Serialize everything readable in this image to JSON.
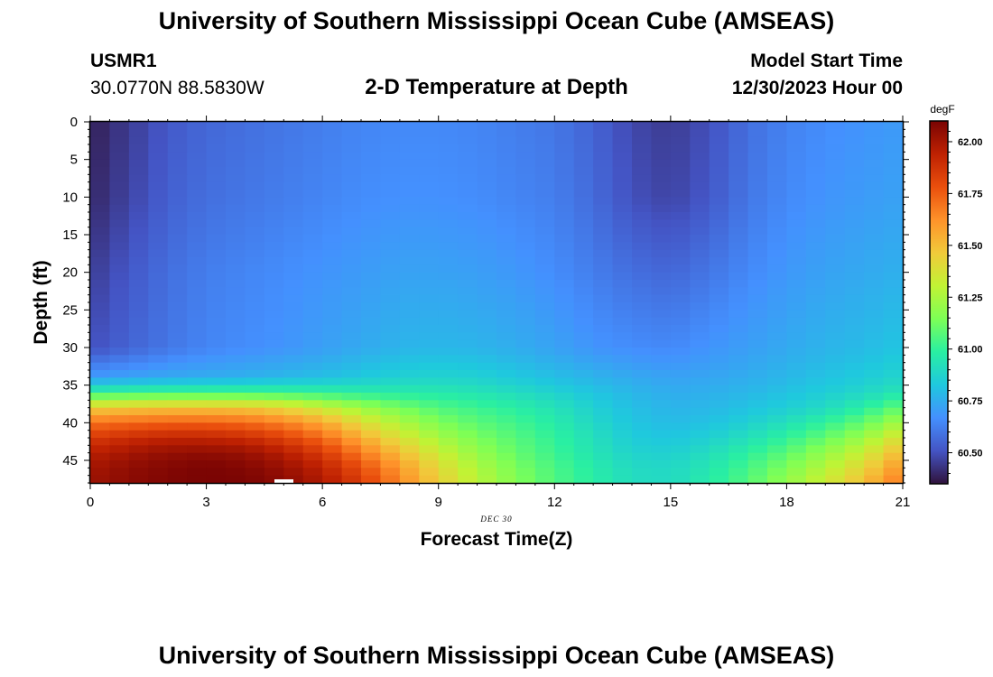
{
  "header": {
    "title": "University of Southern Mississippi Ocean Cube (AMSEAS)",
    "station_id": "USMR1",
    "station_coords": "30.0770N  88.5830W",
    "plot_title": "2-D Temperature at Depth",
    "model_start_label": "Model Start Time",
    "model_start_value": "12/30/2023 Hour 00"
  },
  "footer": {
    "title": "University of Southern Mississippi Ocean Cube (AMSEAS)"
  },
  "chart_data": {
    "type": "heatmap",
    "title": "2-D Temperature at Depth",
    "xlabel": "Forecast Time(Z)",
    "ylabel": "Depth (ft)",
    "date_label": "DEC 30",
    "x_ticks": [
      0,
      3,
      6,
      9,
      12,
      15,
      18,
      21
    ],
    "y_ticks": [
      0,
      5,
      10,
      15,
      20,
      25,
      30,
      35,
      40,
      45
    ],
    "xlim": [
      0,
      21
    ],
    "ylim": [
      0,
      48
    ],
    "colorbar": {
      "unit": "degF",
      "ticks": [
        "62.00",
        "61.75",
        "61.50",
        "61.25",
        "61.00",
        "60.75",
        "60.50"
      ],
      "range": [
        60.35,
        62.1
      ],
      "colors": [
        "#30123b",
        "#4454c4",
        "#4490fe",
        "#1fc8de",
        "#29efa2",
        "#7dff56",
        "#c1f334",
        "#f1ca3a",
        "#fe922a",
        "#ea4f0d",
        "#be2102",
        "#7a0403"
      ]
    },
    "time_hours": [
      0,
      1,
      2,
      3,
      4,
      5,
      6,
      7,
      8,
      9,
      10,
      11,
      12,
      13,
      14,
      15,
      16,
      17,
      18,
      19,
      20,
      21
    ],
    "depth_ft": [
      0,
      10,
      20,
      30,
      34,
      36,
      38,
      40,
      42,
      44,
      46,
      48
    ],
    "temperature_degF": [
      [
        60.38,
        60.45,
        60.52,
        60.56,
        60.58,
        60.6,
        60.62,
        60.64,
        60.65,
        60.65,
        60.64,
        60.62,
        60.6,
        60.55,
        60.48,
        60.45,
        60.5,
        60.58,
        60.63,
        60.66,
        60.68,
        60.7
      ],
      [
        60.4,
        60.47,
        60.54,
        60.58,
        60.6,
        60.62,
        60.64,
        60.66,
        60.67,
        60.67,
        60.66,
        60.64,
        60.62,
        60.57,
        60.5,
        60.47,
        60.52,
        60.6,
        60.65,
        60.68,
        60.7,
        60.72
      ],
      [
        60.45,
        60.52,
        60.58,
        60.62,
        60.64,
        60.66,
        60.68,
        60.7,
        60.72,
        60.72,
        60.71,
        60.69,
        60.66,
        60.62,
        60.58,
        60.56,
        60.6,
        60.65,
        60.69,
        60.72,
        60.74,
        60.76
      ],
      [
        60.5,
        60.55,
        60.6,
        60.64,
        60.66,
        60.68,
        60.71,
        60.74,
        60.77,
        60.78,
        60.77,
        60.75,
        60.72,
        60.68,
        60.66,
        60.65,
        60.68,
        60.71,
        60.74,
        60.77,
        60.79,
        60.82
      ],
      [
        60.7,
        60.72,
        60.74,
        60.75,
        60.76,
        60.78,
        60.8,
        60.83,
        60.86,
        60.87,
        60.86,
        60.83,
        60.8,
        60.77,
        60.74,
        60.72,
        60.73,
        60.75,
        60.78,
        60.81,
        60.84,
        60.88
      ],
      [
        61.0,
        61.02,
        61.03,
        61.03,
        61.03,
        61.02,
        61.0,
        60.98,
        60.97,
        60.96,
        60.94,
        60.91,
        60.87,
        60.82,
        60.78,
        60.75,
        60.76,
        60.78,
        60.81,
        60.85,
        60.89,
        60.95
      ],
      [
        61.45,
        61.47,
        61.48,
        61.48,
        61.47,
        61.42,
        61.33,
        61.22,
        61.13,
        61.06,
        61.02,
        60.98,
        60.93,
        60.86,
        60.8,
        60.77,
        60.78,
        60.81,
        60.85,
        60.9,
        60.98,
        61.1
      ],
      [
        61.7,
        61.72,
        61.74,
        61.74,
        61.72,
        61.66,
        61.56,
        61.4,
        61.26,
        61.15,
        61.08,
        61.03,
        60.97,
        60.89,
        60.82,
        60.79,
        60.81,
        60.86,
        60.92,
        61.0,
        61.1,
        61.25
      ],
      [
        61.85,
        61.9,
        61.93,
        61.93,
        61.9,
        61.83,
        61.72,
        61.55,
        61.38,
        61.24,
        61.14,
        61.07,
        61.0,
        60.92,
        60.84,
        60.82,
        60.86,
        60.92,
        61.0,
        61.1,
        61.22,
        61.4
      ],
      [
        61.95,
        62.0,
        62.04,
        62.05,
        62.03,
        61.96,
        61.85,
        61.68,
        61.5,
        61.33,
        61.2,
        61.1,
        61.02,
        60.94,
        60.87,
        60.86,
        60.91,
        60.99,
        61.08,
        61.2,
        61.33,
        61.52
      ],
      [
        62.0,
        62.05,
        62.08,
        62.1,
        62.08,
        62.03,
        61.94,
        61.79,
        61.6,
        61.41,
        61.26,
        61.14,
        61.05,
        60.97,
        60.9,
        60.89,
        60.95,
        61.04,
        61.15,
        61.28,
        61.43,
        61.62
      ],
      [
        62.02,
        62.06,
        62.09,
        62.1,
        62.1,
        62.06,
        61.98,
        61.85,
        61.65,
        61.45,
        61.29,
        61.16,
        61.06,
        60.98,
        60.91,
        60.9,
        60.97,
        61.07,
        61.2,
        61.34,
        61.5,
        61.7
      ]
    ]
  }
}
